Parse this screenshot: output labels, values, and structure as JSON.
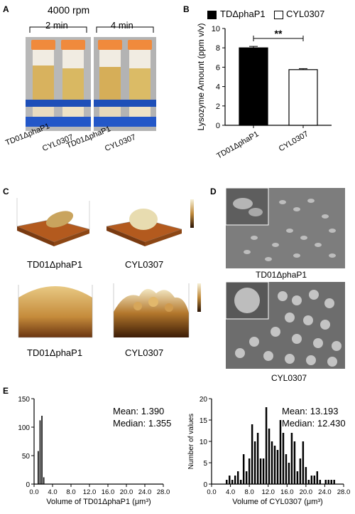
{
  "panels": {
    "A": {
      "letter": "A",
      "title": "4000 rpm",
      "time_left": "2 min",
      "time_right": "4 min",
      "tube_label_1": "TD01ΔphaP1",
      "tube_label_2": "CYL0307",
      "tube_label_3": "TD01ΔphaP1",
      "tube_label_4": "CYL0307"
    },
    "B": {
      "letter": "B",
      "legend_1": "TDΔphaP1",
      "legend_2": "CYL0307",
      "significance": "**"
    },
    "C": {
      "letter": "C",
      "label_tl": "TD01ΔphaP1",
      "label_tr": "CYL0307",
      "label_bl": "TD01ΔphaP1",
      "label_br": "CYL0307"
    },
    "D": {
      "letter": "D",
      "label_top": "TD01ΔphaP1",
      "label_bottom": "CYL0307"
    },
    "E": {
      "letter": "E",
      "left_mean": "Mean: 1.390",
      "left_median": "Median: 1.355",
      "right_mean": "Mean: 13.193",
      "right_median": "Median: 12.430"
    }
  },
  "chart_data": [
    {
      "id": "B",
      "type": "bar",
      "categories": [
        "TD01ΔphaP1",
        "CYL0307"
      ],
      "values": [
        8.0,
        5.75
      ],
      "errors": [
        0.15,
        0.1
      ],
      "colors": [
        "#000000",
        "#ffffff"
      ],
      "ylabel": "Lysozyme Amount (ppm v/v)",
      "ylim": [
        0,
        10
      ],
      "yticks": [
        0,
        2,
        4,
        6,
        8,
        10
      ]
    },
    {
      "id": "E-left",
      "type": "bar",
      "xlabel": "Volume of TD01ΔphaP1 (μm³)",
      "ylabel": "",
      "xlim": [
        0,
        28
      ],
      "ylim": [
        0,
        150
      ],
      "xticks": [
        "0.0",
        "4.0",
        "8.0",
        "12.0",
        "16.0",
        "20.0",
        "24.0",
        "28.0"
      ],
      "yticks": [
        "0",
        "50",
        "100",
        "150"
      ],
      "x": [
        0.9,
        1.3,
        1.7,
        2.1
      ],
      "values": [
        58,
        112,
        120,
        12
      ]
    },
    {
      "id": "E-right",
      "type": "bar",
      "xlabel": "Volume of CYL0307 (μm³)",
      "ylabel": "Number of values",
      "xlim": [
        0,
        28
      ],
      "ylim": [
        0,
        20
      ],
      "xticks": [
        "0.0",
        "4.0",
        "8.0",
        "12.0",
        "16.0",
        "20.0",
        "24.0",
        "28.0"
      ],
      "yticks": [
        "0",
        "5",
        "10",
        "15",
        "20"
      ],
      "x": [
        3.2,
        3.8,
        4.4,
        5.0,
        5.6,
        6.2,
        6.8,
        7.4,
        8.0,
        8.6,
        9.2,
        9.8,
        10.4,
        11.0,
        11.6,
        12.2,
        12.8,
        13.4,
        14.0,
        14.6,
        15.2,
        15.8,
        16.4,
        17.0,
        17.6,
        18.2,
        18.8,
        19.4,
        20.0,
        20.6,
        21.2,
        21.8,
        22.4,
        23.0,
        23.6,
        24.2,
        24.8,
        25.4,
        26.0,
        26.6
      ],
      "values": [
        1,
        2,
        1,
        2,
        3,
        1,
        7,
        3,
        6,
        14,
        10,
        12,
        6,
        6,
        18,
        13,
        10,
        9,
        8,
        15,
        12,
        7,
        5,
        12,
        10,
        3,
        6,
        10,
        4,
        1,
        2,
        2,
        3,
        1,
        0,
        1,
        1,
        1,
        1,
        0
      ]
    }
  ]
}
